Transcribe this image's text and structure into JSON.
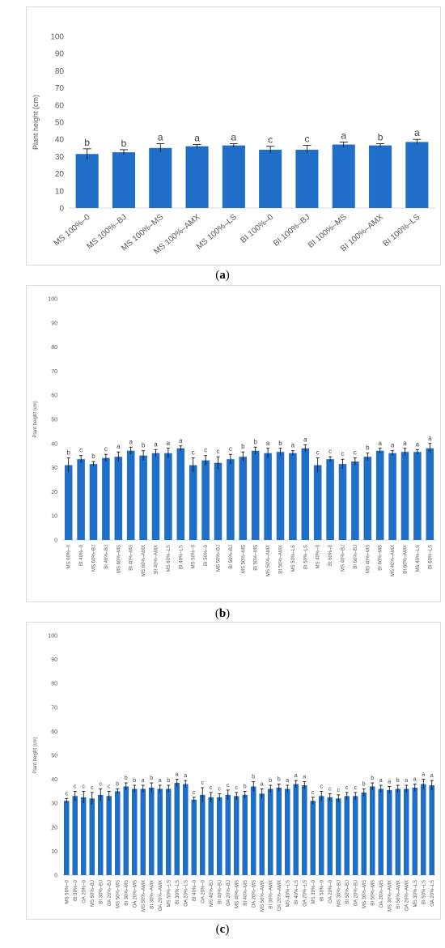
{
  "captions": {
    "a": "a",
    "b": "b",
    "c": "c"
  },
  "colors": {
    "bar": "#1f6fc9",
    "axis": "#d9d9d9",
    "text": "#595959"
  },
  "chart_data": [
    {
      "type": "bar",
      "ylabel": "Plant height (cm)",
      "xlabel": "",
      "ylim": [
        0,
        100
      ],
      "yticks": [
        0,
        10,
        20,
        30,
        40,
        50,
        60,
        70,
        80,
        90,
        100
      ],
      "grid": false,
      "categories": [
        "MS 100%–0",
        "MS 100%–BJ",
        "MS 100%–MS",
        "MS 100%–AMX",
        "MS 100%–LS",
        "BI 100%–0",
        "BI 100%–BJ",
        "BI 100%–MS",
        "BI 100%–AMX",
        "BI 100%–LS"
      ],
      "values": [
        31.5,
        32.5,
        35,
        36,
        36.5,
        34,
        34,
        37,
        36.5,
        38.5
      ],
      "errors": [
        3,
        1.5,
        2.5,
        1,
        1,
        2,
        2.5,
        1.5,
        1,
        1.5
      ],
      "letters": [
        "b",
        "b",
        "a",
        "a",
        "a",
        "c",
        "c",
        "a",
        "b",
        "a"
      ]
    },
    {
      "type": "bar",
      "ylabel": "Plant height (cm)",
      "xlabel": "",
      "ylim": [
        0,
        100
      ],
      "yticks": [
        0,
        10,
        20,
        30,
        40,
        50,
        60,
        70,
        80,
        90,
        100
      ],
      "grid": false,
      "categories": [
        "MS 60%–0",
        "BI 40%–0",
        "MS 60%–BJ",
        "BI 40%–BJ",
        "MS 60%–MS",
        "BI 40%–MS",
        "MS 60%–AMX",
        "BI 40%–AMX",
        "MS 60%–LS",
        "BI 40%–LS",
        "MS 50%–0",
        "BI 50%–0",
        "MS 50%–BJ",
        "BI 50%–BJ",
        "MS 50%–MS",
        "BI 50%–MS",
        "MS 50%–AMX",
        "BI 50%–AMX",
        "MS 50%–LS",
        "BI 50%–LS",
        "MS 40%–0",
        "BI 60%–0",
        "MS 40%–BJ",
        "BI 60%–BJ",
        "MS 40%–MS",
        "BI 60%–MS",
        "MS 40%–AMX",
        "BI 60%–AMX",
        "MS 40%–LS",
        "BI 60%–LS"
      ],
      "values": [
        31,
        33.5,
        31.5,
        34,
        34.5,
        37,
        35,
        36,
        36,
        38,
        31,
        33,
        32,
        33.5,
        34.5,
        37,
        36,
        36.5,
        36,
        38,
        31,
        33.5,
        31.5,
        32.5,
        34.5,
        37,
        36,
        36.5,
        36.5,
        38
      ],
      "errors": [
        3,
        1.5,
        1,
        1.5,
        2,
        1.5,
        2,
        1.5,
        2,
        1,
        3,
        2,
        2.5,
        2,
        2,
        1.5,
        2,
        1.5,
        1,
        1.5,
        3,
        1,
        2,
        1.5,
        1.5,
        1,
        1,
        1.5,
        1,
        2
      ],
      "letters": [
        "b",
        "c",
        "b",
        "c",
        "a",
        "a",
        "b",
        "a",
        "a",
        "a",
        "c",
        "c",
        "c",
        "c",
        "b",
        "b",
        "a",
        "b",
        "a",
        "a",
        "c",
        "c",
        "c",
        "c",
        "b",
        "a",
        "a",
        "a",
        "a",
        "a"
      ]
    },
    {
      "type": "bar",
      "ylabel": "Plant height (cm)",
      "xlabel": "",
      "ylim": [
        0,
        100
      ],
      "yticks": [
        0,
        10,
        20,
        30,
        40,
        50,
        60,
        70,
        80,
        90,
        100
      ],
      "grid": false,
      "categories": [
        "MS 50%–0",
        "BI 30%–0",
        "OA 20%–0",
        "MS 50%–BJ",
        "BI 30%–BJ",
        "OA 20%–BJ",
        "MS 50%–MS",
        "BI 30%–MS",
        "OA 20%–MS",
        "MS 50%–AMX",
        "BI 30%–AMX",
        "OA 20%–AMX",
        "MS 50%–LS",
        "BI 30%–LS",
        "OA 20%–LS",
        "BI 40%–0",
        "OA 20%–0",
        "MS 40%–BJ",
        "BI 40%–BJ",
        "OA 20%–BJ",
        "MS 40%–MS",
        "BI 40%–MS",
        "OA 20%–MS",
        "MS 50%–AMX",
        "BI 30%–AMX",
        "OA 20%–AMX",
        "MS 40%–LS",
        "BI 40%–LS",
        "OA 20%–LS",
        "MS 30%–0",
        "BI 50%–0",
        "OA 20%–0",
        "MS 30%–BJ",
        "BI 50%–BJ",
        "OA 20%–BJ",
        "MS 30%–MS",
        "BI 50%–MS",
        "OA 20%–MS",
        "MS 30%–AMX",
        "BI 50%–AMX",
        "OA 20%–AMX",
        "MS 30%–LS",
        "BI 50%–LS",
        "OA 20%–LS"
      ],
      "values": [
        31,
        33,
        32.5,
        32,
        33.5,
        33,
        35,
        37,
        36,
        36,
        36.5,
        36,
        36,
        38.5,
        38,
        31.5,
        33.5,
        32.5,
        32.5,
        33.5,
        33,
        33.5,
        37,
        34,
        36,
        36.5,
        36,
        38,
        37.5,
        31,
        33,
        32.5,
        32,
        33,
        33,
        34.5,
        37,
        36,
        35.5,
        36,
        36,
        36.5,
        38,
        37.5
      ],
      "errors": [
        1,
        2,
        2.5,
        2.5,
        2.5,
        2,
        1,
        1.5,
        1.5,
        1.5,
        2,
        1.5,
        1.5,
        1.5,
        1.5,
        1,
        3,
        2,
        1.5,
        2,
        1.5,
        1.5,
        2,
        2,
        1.5,
        1.5,
        1.5,
        1.5,
        1.5,
        1.5,
        2,
        1.5,
        1.5,
        1.5,
        1.5,
        1.5,
        1.5,
        1.5,
        1.5,
        1.5,
        1.5,
        1.5,
        2,
        2
      ],
      "letters": [
        "c",
        "c",
        "c",
        "c",
        "c",
        "c",
        "b",
        "b",
        "b",
        "a",
        "b",
        "a",
        "b",
        "a",
        "a",
        "c",
        "c",
        "c",
        "c",
        "c",
        "c",
        "b",
        "b",
        "a",
        "b",
        "b",
        "a",
        "a",
        "a",
        "c",
        "c",
        "c",
        "c",
        "c",
        "c",
        "b",
        "b",
        "a",
        "a",
        "b",
        "a",
        "a",
        "a",
        "a"
      ]
    }
  ]
}
